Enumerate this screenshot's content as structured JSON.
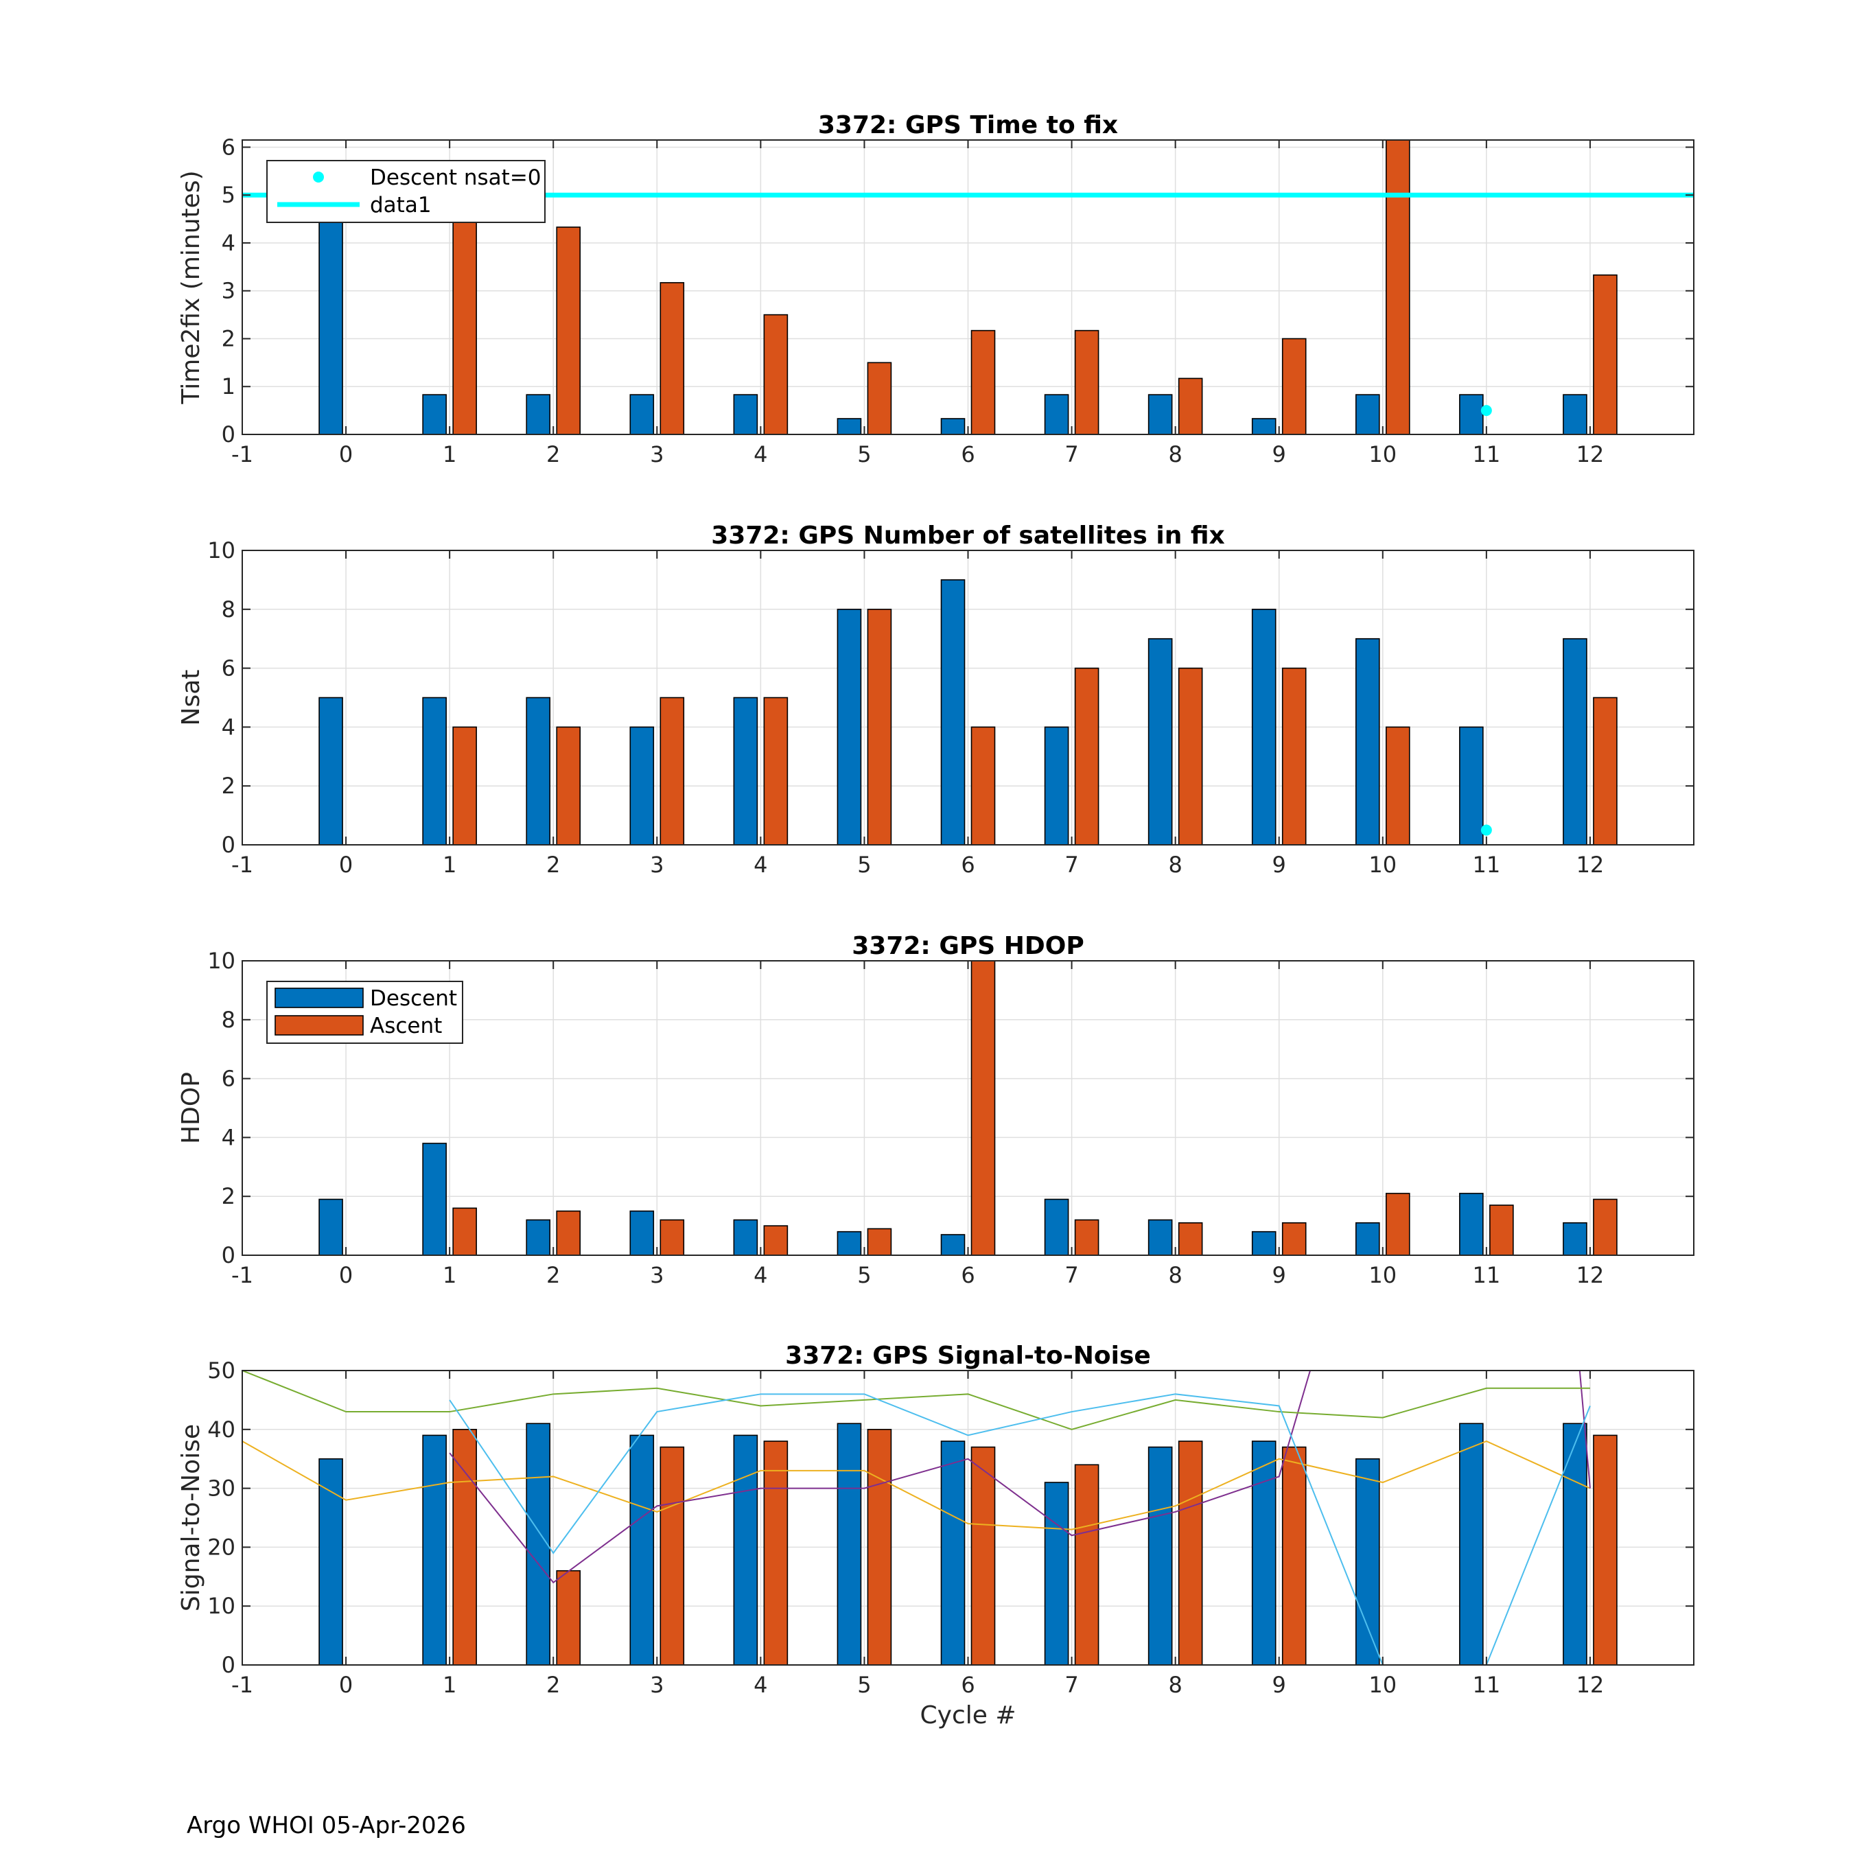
{
  "footer": "Argo WHOI 05-Apr-2026",
  "colors": {
    "descent": "#0072BD",
    "ascent": "#D95319",
    "marker": "#00FFFF",
    "snr_lines": [
      "#EDB120",
      "#7E2F8E",
      "#77AC30",
      "#4DBEEE"
    ]
  },
  "chart_data": [
    {
      "id": "time2fix",
      "type": "bar",
      "title": "3372: GPS Time to fix",
      "xlabel": "",
      "ylabel": "Time2fix (minutes)",
      "xlim": [
        -1,
        13
      ],
      "ylim": [
        0,
        6.15
      ],
      "xticks": [
        -1,
        0,
        1,
        2,
        3,
        4,
        5,
        6,
        7,
        8,
        9,
        10,
        11,
        12
      ],
      "yticks": [
        0,
        1,
        2,
        3,
        4,
        5,
        6
      ],
      "grid": true,
      "categories": [
        0,
        1,
        2,
        3,
        4,
        5,
        6,
        7,
        8,
        9,
        10,
        11,
        12
      ],
      "series": [
        {
          "name": "Descent",
          "color": "#0072BD",
          "values": [
            5.0,
            0.83,
            0.83,
            0.83,
            0.83,
            0.33,
            0.33,
            0.83,
            0.83,
            0.33,
            0.83,
            0.83,
            0.83
          ]
        },
        {
          "name": "Ascent",
          "color": "#D95319",
          "values": [
            null,
            5.0,
            4.33,
            3.17,
            2.5,
            1.5,
            2.17,
            2.17,
            1.17,
            2.0,
            6.5,
            null,
            3.33
          ]
        }
      ],
      "points": [
        {
          "name": "Descent nsat=0",
          "x": 11,
          "y": 0.5
        }
      ],
      "hline": {
        "name": "data1",
        "y": 5
      },
      "legend": {
        "position": "top-left",
        "entries": [
          {
            "label": "Descent nsat=0",
            "kind": "marker",
            "color": "#00FFFF"
          },
          {
            "label": "data1",
            "kind": "line",
            "color": "#00FFFF"
          }
        ]
      }
    },
    {
      "id": "nsat",
      "type": "bar",
      "title": "3372: GPS Number of satellites in fix",
      "xlabel": "",
      "ylabel": "Nsat",
      "xlim": [
        -1,
        13
      ],
      "ylim": [
        0,
        10
      ],
      "xticks": [
        -1,
        0,
        1,
        2,
        3,
        4,
        5,
        6,
        7,
        8,
        9,
        10,
        11,
        12
      ],
      "yticks": [
        0,
        2,
        4,
        6,
        8,
        10
      ],
      "grid": true,
      "categories": [
        0,
        1,
        2,
        3,
        4,
        5,
        6,
        7,
        8,
        9,
        10,
        11,
        12
      ],
      "series": [
        {
          "name": "Descent",
          "color": "#0072BD",
          "values": [
            5,
            5,
            5,
            4,
            5,
            8,
            9,
            4,
            7,
            8,
            7,
            4,
            7
          ]
        },
        {
          "name": "Ascent",
          "color": "#D95319",
          "values": [
            null,
            4,
            4,
            5,
            5,
            8,
            4,
            6,
            6,
            6,
            4,
            null,
            5
          ]
        }
      ],
      "points": [
        {
          "name": "Descent nsat=0",
          "x": 11,
          "y": 0.5
        }
      ]
    },
    {
      "id": "hdop",
      "type": "bar",
      "title": "3372: GPS HDOP",
      "xlabel": "",
      "ylabel": "HDOP",
      "xlim": [
        -1,
        13
      ],
      "ylim": [
        0,
        10
      ],
      "xticks": [
        -1,
        0,
        1,
        2,
        3,
        4,
        5,
        6,
        7,
        8,
        9,
        10,
        11,
        12
      ],
      "yticks": [
        0,
        2,
        4,
        6,
        8,
        10
      ],
      "grid": true,
      "categories": [
        0,
        1,
        2,
        3,
        4,
        5,
        6,
        7,
        8,
        9,
        10,
        11,
        12
      ],
      "series": [
        {
          "name": "Descent",
          "color": "#0072BD",
          "values": [
            1.9,
            3.8,
            1.2,
            1.5,
            1.2,
            0.8,
            0.7,
            1.9,
            1.2,
            0.8,
            1.1,
            2.1,
            1.1
          ]
        },
        {
          "name": "Ascent",
          "color": "#D95319",
          "values": [
            null,
            1.6,
            1.5,
            1.2,
            1.0,
            0.9,
            10.5,
            1.2,
            1.1,
            1.1,
            2.1,
            1.7,
            1.9
          ]
        }
      ],
      "legend": {
        "position": "top-left",
        "entries": [
          {
            "label": "Descent",
            "kind": "bar",
            "color": "#0072BD"
          },
          {
            "label": "Ascent",
            "kind": "bar",
            "color": "#D95319"
          }
        ]
      }
    },
    {
      "id": "snr",
      "type": "bar",
      "title": "3372: GPS Signal-to-Noise",
      "xlabel": "Cycle #",
      "ylabel": "Signal-to-Noise",
      "xlim": [
        -1,
        13
      ],
      "ylim": [
        0,
        50
      ],
      "xticks": [
        -1,
        0,
        1,
        2,
        3,
        4,
        5,
        6,
        7,
        8,
        9,
        10,
        11,
        12
      ],
      "yticks": [
        0,
        10,
        20,
        30,
        40,
        50
      ],
      "grid": true,
      "categories": [
        0,
        1,
        2,
        3,
        4,
        5,
        6,
        7,
        8,
        9,
        10,
        11,
        12
      ],
      "series": [
        {
          "name": "Descent",
          "color": "#0072BD",
          "values": [
            35,
            39,
            41,
            39,
            39,
            41,
            38,
            31,
            37,
            38,
            35,
            41,
            41
          ]
        },
        {
          "name": "Ascent",
          "color": "#D95319",
          "values": [
            null,
            40,
            16,
            37,
            38,
            40,
            37,
            34,
            38,
            37,
            null,
            null,
            39
          ]
        }
      ],
      "lines": [
        {
          "name": "sat1",
          "color": "#EDB120",
          "x": [
            -1,
            0,
            1,
            2,
            3,
            4,
            5,
            6,
            7,
            8,
            9,
            10,
            11,
            12
          ],
          "y": [
            38,
            28,
            31,
            32,
            26,
            33,
            33,
            24,
            23,
            27,
            35,
            31,
            38,
            30
          ]
        },
        {
          "name": "sat2",
          "color": "#7E2F8E",
          "x": [
            1,
            2,
            3,
            4,
            5,
            6,
            7,
            8,
            9,
            9.3,
            11.9,
            12
          ],
          "y": [
            36,
            14,
            27,
            30,
            30,
            35,
            22,
            26,
            32,
            50,
            50,
            30
          ]
        },
        {
          "name": "sat3",
          "color": "#77AC30",
          "x": [
            -1,
            0,
            1,
            2,
            3,
            4,
            5,
            6,
            7,
            8,
            9,
            10,
            11,
            12
          ],
          "y": [
            50,
            43,
            43,
            46,
            47,
            44,
            45,
            46,
            40,
            45,
            43,
            42,
            47,
            47
          ]
        },
        {
          "name": "sat4",
          "color": "#4DBEEE",
          "x": [
            1,
            2,
            3,
            4,
            5,
            6,
            7,
            8,
            9,
            10,
            11,
            12
          ],
          "y": [
            45,
            19,
            43,
            46,
            46,
            39,
            43,
            46,
            44,
            0,
            0,
            44
          ]
        }
      ]
    }
  ]
}
